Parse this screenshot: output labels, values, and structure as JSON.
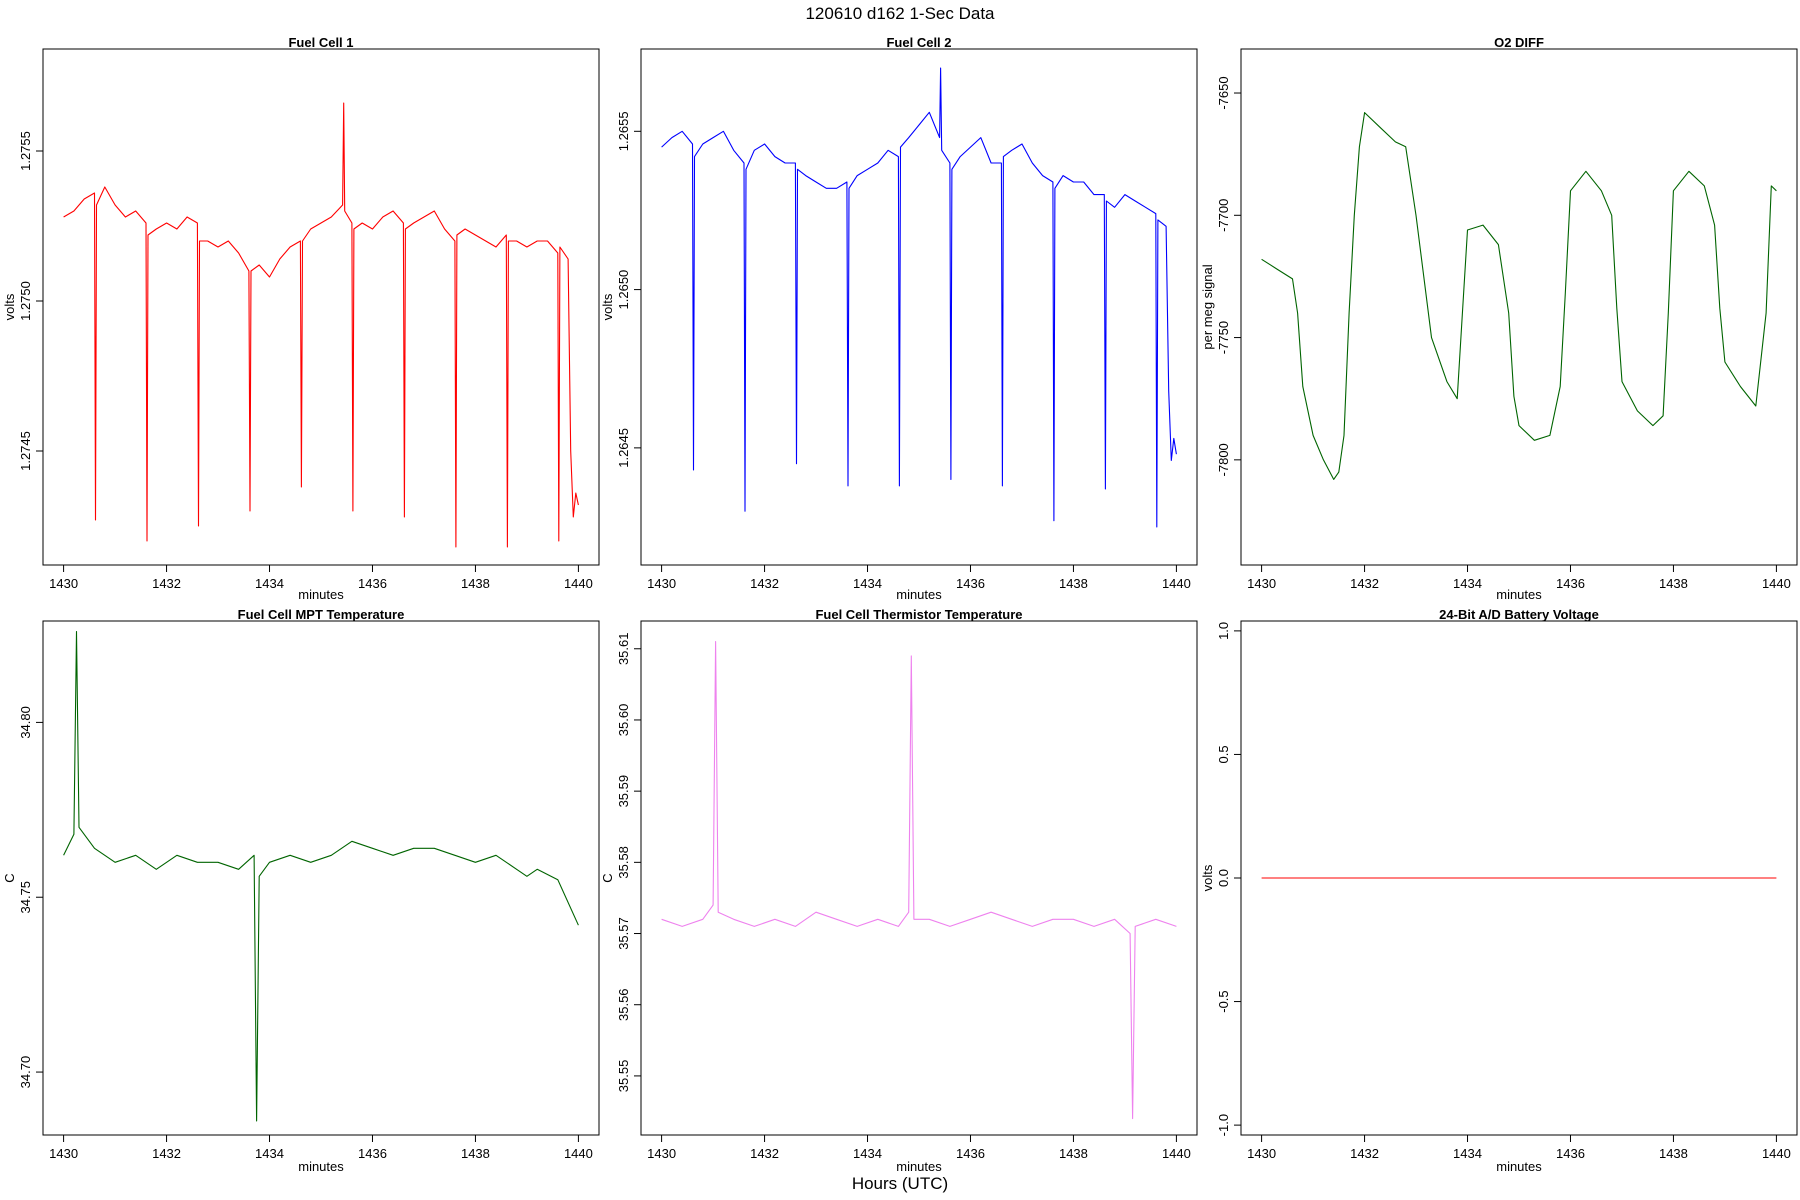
{
  "figure": {
    "title": "120610   d162   1-Sec Data",
    "xlabel": "Hours (UTC)"
  },
  "chart_data": [
    {
      "type": "line",
      "title": "Fuel Cell 1",
      "xlabel": "minutes",
      "ylabel": "volts",
      "color": "#ff0000",
      "xlim": [
        1429.6,
        1440.4
      ],
      "ylim": [
        1.27412,
        1.27584
      ],
      "xticks": [
        1430,
        1432,
        1434,
        1436,
        1438,
        1440
      ],
      "yticks": [
        1.2745,
        1.275,
        1.2755
      ],
      "ytick_labels": [
        "1.2745",
        "1.2750",
        "1.2755"
      ],
      "x": [
        1430,
        1430.2,
        1430.4,
        1430.6,
        1430.62,
        1430.64,
        1430.8,
        1431,
        1431.2,
        1431.4,
        1431.6,
        1431.62,
        1431.64,
        1431.8,
        1432,
        1432.2,
        1432.4,
        1432.6,
        1432.62,
        1432.64,
        1432.8,
        1433,
        1433.2,
        1433.4,
        1433.6,
        1433.62,
        1433.64,
        1433.8,
        1434,
        1434.2,
        1434.4,
        1434.6,
        1434.62,
        1434.64,
        1434.8,
        1435,
        1435.2,
        1435.42,
        1435.44,
        1435.46,
        1435.6,
        1435.62,
        1435.64,
        1435.8,
        1436,
        1436.2,
        1436.4,
        1436.6,
        1436.62,
        1436.64,
        1436.8,
        1437,
        1437.2,
        1437.4,
        1437.6,
        1437.62,
        1437.64,
        1437.8,
        1438,
        1438.2,
        1438.4,
        1438.6,
        1438.62,
        1438.64,
        1438.8,
        1439,
        1439.2,
        1439.4,
        1439.6,
        1439.62,
        1439.64,
        1439.8,
        1439.85,
        1439.9,
        1439.95,
        1440
      ],
      "y": [
        1.27528,
        1.2753,
        1.27534,
        1.27536,
        1.27427,
        1.27532,
        1.27538,
        1.27532,
        1.27528,
        1.2753,
        1.27526,
        1.2742,
        1.27522,
        1.27524,
        1.27526,
        1.27524,
        1.27528,
        1.27526,
        1.27425,
        1.2752,
        1.2752,
        1.27518,
        1.2752,
        1.27516,
        1.2751,
        1.2743,
        1.2751,
        1.27512,
        1.27508,
        1.27514,
        1.27518,
        1.2752,
        1.27438,
        1.2752,
        1.27524,
        1.27526,
        1.27528,
        1.27532,
        1.27566,
        1.2753,
        1.27526,
        1.2743,
        1.27524,
        1.27526,
        1.27524,
        1.27528,
        1.2753,
        1.27526,
        1.27428,
        1.27524,
        1.27526,
        1.27528,
        1.2753,
        1.27524,
        1.2752,
        1.27418,
        1.27522,
        1.27524,
        1.27522,
        1.2752,
        1.27518,
        1.27522,
        1.27418,
        1.2752,
        1.2752,
        1.27518,
        1.2752,
        1.2752,
        1.27516,
        1.2742,
        1.27518,
        1.27514,
        1.2745,
        1.27428,
        1.27436,
        1.27432
      ]
    },
    {
      "type": "line",
      "title": "Fuel Cell 2",
      "xlabel": "minutes",
      "ylabel": "volts",
      "color": "#0000ff",
      "xlim": [
        1429.6,
        1440.4
      ],
      "ylim": [
        1.26413,
        1.26576
      ],
      "xticks": [
        1430,
        1432,
        1434,
        1436,
        1438,
        1440
      ],
      "yticks": [
        1.2645,
        1.265,
        1.2655
      ],
      "ytick_labels": [
        "1.2645",
        "1.2650",
        "1.2655"
      ],
      "x": [
        1430,
        1430.2,
        1430.4,
        1430.6,
        1430.62,
        1430.64,
        1430.8,
        1431,
        1431.2,
        1431.4,
        1431.6,
        1431.62,
        1431.64,
        1431.8,
        1432,
        1432.2,
        1432.4,
        1432.6,
        1432.62,
        1432.64,
        1432.8,
        1433,
        1433.2,
        1433.4,
        1433.6,
        1433.62,
        1433.64,
        1433.8,
        1434,
        1434.2,
        1434.4,
        1434.6,
        1434.62,
        1434.64,
        1434.8,
        1435,
        1435.2,
        1435.4,
        1435.42,
        1435.44,
        1435.6,
        1435.62,
        1435.64,
        1435.8,
        1436,
        1436.2,
        1436.4,
        1436.6,
        1436.62,
        1436.64,
        1436.8,
        1437,
        1437.2,
        1437.4,
        1437.6,
        1437.62,
        1437.64,
        1437.8,
        1438,
        1438.2,
        1438.4,
        1438.6,
        1438.62,
        1438.64,
        1438.8,
        1439,
        1439.2,
        1439.4,
        1439.6,
        1439.62,
        1439.64,
        1439.8,
        1439.85,
        1439.9,
        1439.95,
        1440
      ],
      "y": [
        1.26545,
        1.26548,
        1.2655,
        1.26546,
        1.26443,
        1.26542,
        1.26546,
        1.26548,
        1.2655,
        1.26544,
        1.2654,
        1.2643,
        1.26538,
        1.26544,
        1.26546,
        1.26542,
        1.2654,
        1.2654,
        1.26445,
        1.26538,
        1.26536,
        1.26534,
        1.26532,
        1.26532,
        1.26534,
        1.26438,
        1.26532,
        1.26536,
        1.26538,
        1.2654,
        1.26544,
        1.26542,
        1.26438,
        1.26545,
        1.26548,
        1.26552,
        1.26556,
        1.26548,
        1.2657,
        1.26544,
        1.2654,
        1.2644,
        1.26538,
        1.26542,
        1.26545,
        1.26548,
        1.2654,
        1.2654,
        1.26438,
        1.26542,
        1.26544,
        1.26546,
        1.2654,
        1.26536,
        1.26534,
        1.26427,
        1.26532,
        1.26536,
        1.26534,
        1.26534,
        1.2653,
        1.2653,
        1.26437,
        1.26528,
        1.26526,
        1.2653,
        1.26528,
        1.26526,
        1.26524,
        1.26425,
        1.26522,
        1.2652,
        1.26468,
        1.26446,
        1.26453,
        1.26448
      ]
    },
    {
      "type": "line",
      "title": "O2 DIFF",
      "xlabel": "minutes",
      "ylabel": "per meg signal",
      "color": "#006400",
      "xlim": [
        1429.6,
        1440.4
      ],
      "ylim": [
        -7843,
        -7632
      ],
      "xticks": [
        1430,
        1432,
        1434,
        1436,
        1438,
        1440
      ],
      "yticks": [
        -7800,
        -7750,
        -7700,
        -7650
      ],
      "ytick_labels": [
        "-7800",
        "-7750",
        "-7700",
        "-7650"
      ],
      "x": [
        1430,
        1430.3,
        1430.6,
        1430.7,
        1430.8,
        1431,
        1431.2,
        1431.4,
        1431.5,
        1431.6,
        1431.7,
        1431.8,
        1431.9,
        1432,
        1432.3,
        1432.6,
        1432.8,
        1433,
        1433.3,
        1433.6,
        1433.8,
        1433.9,
        1434,
        1434.3,
        1434.6,
        1434.8,
        1434.9,
        1435,
        1435.3,
        1435.6,
        1435.8,
        1435.9,
        1436,
        1436.3,
        1436.6,
        1436.8,
        1436.9,
        1437,
        1437.3,
        1437.6,
        1437.8,
        1437.9,
        1438,
        1438.3,
        1438.6,
        1438.8,
        1438.9,
        1439,
        1439.3,
        1439.6,
        1439.8,
        1439.9,
        1440
      ],
      "y": [
        -7718,
        -7722,
        -7726,
        -7740,
        -7770,
        -7790,
        -7800,
        -7808,
        -7805,
        -7790,
        -7740,
        -7700,
        -7672,
        -7658,
        -7664,
        -7670,
        -7672,
        -7700,
        -7750,
        -7768,
        -7775,
        -7740,
        -7706,
        -7704,
        -7712,
        -7740,
        -7774,
        -7786,
        -7792,
        -7790,
        -7770,
        -7732,
        -7690,
        -7682,
        -7690,
        -7700,
        -7738,
        -7768,
        -7780,
        -7786,
        -7782,
        -7740,
        -7690,
        -7682,
        -7688,
        -7704,
        -7738,
        -7760,
        -7770,
        -7778,
        -7740,
        -7688,
        -7690
      ]
    },
    {
      "type": "line",
      "title": "Fuel Cell MPT Temperature",
      "xlabel": "minutes",
      "ylabel": "C",
      "color": "#006400",
      "xlim": [
        1429.6,
        1440.4
      ],
      "ylim": [
        34.682,
        34.829
      ],
      "xticks": [
        1430,
        1432,
        1434,
        1436,
        1438,
        1440
      ],
      "yticks": [
        34.7,
        34.75,
        34.8
      ],
      "ytick_labels": [
        "34.70",
        "34.75",
        "34.80"
      ],
      "x": [
        1430,
        1430.2,
        1430.25,
        1430.3,
        1430.6,
        1431,
        1431.4,
        1431.8,
        1432.2,
        1432.6,
        1433,
        1433.4,
        1433.7,
        1433.75,
        1433.8,
        1434,
        1434.4,
        1434.8,
        1435.2,
        1435.6,
        1436,
        1436.4,
        1436.8,
        1437.2,
        1437.6,
        1438,
        1438.4,
        1438.8,
        1439,
        1439.2,
        1439.6,
        1440
      ],
      "y": [
        34.762,
        34.768,
        34.826,
        34.77,
        34.764,
        34.76,
        34.762,
        34.758,
        34.762,
        34.76,
        34.76,
        34.758,
        34.762,
        34.686,
        34.756,
        34.76,
        34.762,
        34.76,
        34.762,
        34.766,
        34.764,
        34.762,
        34.764,
        34.764,
        34.762,
        34.76,
        34.762,
        34.758,
        34.756,
        34.758,
        34.755,
        34.742
      ]
    },
    {
      "type": "line",
      "title": "Fuel Cell Thermistor Temperature",
      "xlabel": "minutes",
      "ylabel": "C",
      "color": "#ee82ee",
      "xlim": [
        1429.6,
        1440.4
      ],
      "ylim": [
        35.5417,
        35.6139
      ],
      "xticks": [
        1430,
        1432,
        1434,
        1436,
        1438,
        1440
      ],
      "yticks": [
        35.55,
        35.56,
        35.57,
        35.58,
        35.59,
        35.6,
        35.61
      ],
      "ytick_labels": [
        "35.55",
        "35.56",
        "35.57",
        "35.58",
        "35.59",
        "35.60",
        "35.61"
      ],
      "x": [
        1430,
        1430.4,
        1430.8,
        1431,
        1431.05,
        1431.1,
        1431.4,
        1431.8,
        1432.2,
        1432.6,
        1433,
        1433.4,
        1433.8,
        1434.2,
        1434.6,
        1434.8,
        1434.85,
        1434.9,
        1435.2,
        1435.6,
        1436,
        1436.4,
        1436.8,
        1437.2,
        1437.6,
        1438,
        1438.4,
        1438.8,
        1439.1,
        1439.15,
        1439.2,
        1439.6,
        1440
      ],
      "y": [
        35.572,
        35.571,
        35.572,
        35.574,
        35.611,
        35.573,
        35.572,
        35.571,
        35.572,
        35.571,
        35.573,
        35.572,
        35.571,
        35.572,
        35.571,
        35.573,
        35.609,
        35.572,
        35.572,
        35.571,
        35.572,
        35.573,
        35.572,
        35.571,
        35.572,
        35.572,
        35.571,
        35.572,
        35.57,
        35.544,
        35.571,
        35.572,
        35.571
      ]
    },
    {
      "type": "line",
      "title": "24-Bit A/D Battery Voltage",
      "xlabel": "minutes",
      "ylabel": "volts",
      "color": "#ff0000",
      "xlim": [
        1429.6,
        1440.4
      ],
      "ylim": [
        -1.04,
        1.04
      ],
      "xticks": [
        1430,
        1432,
        1434,
        1436,
        1438,
        1440
      ],
      "yticks": [
        -1,
        -0.5,
        0,
        0.5,
        1
      ],
      "ytick_labels": [
        "-1.0",
        "-0.5",
        "0.0",
        "0.5",
        "1.0"
      ],
      "x": [
        1430,
        1440
      ],
      "y": [
        0,
        0
      ]
    }
  ]
}
